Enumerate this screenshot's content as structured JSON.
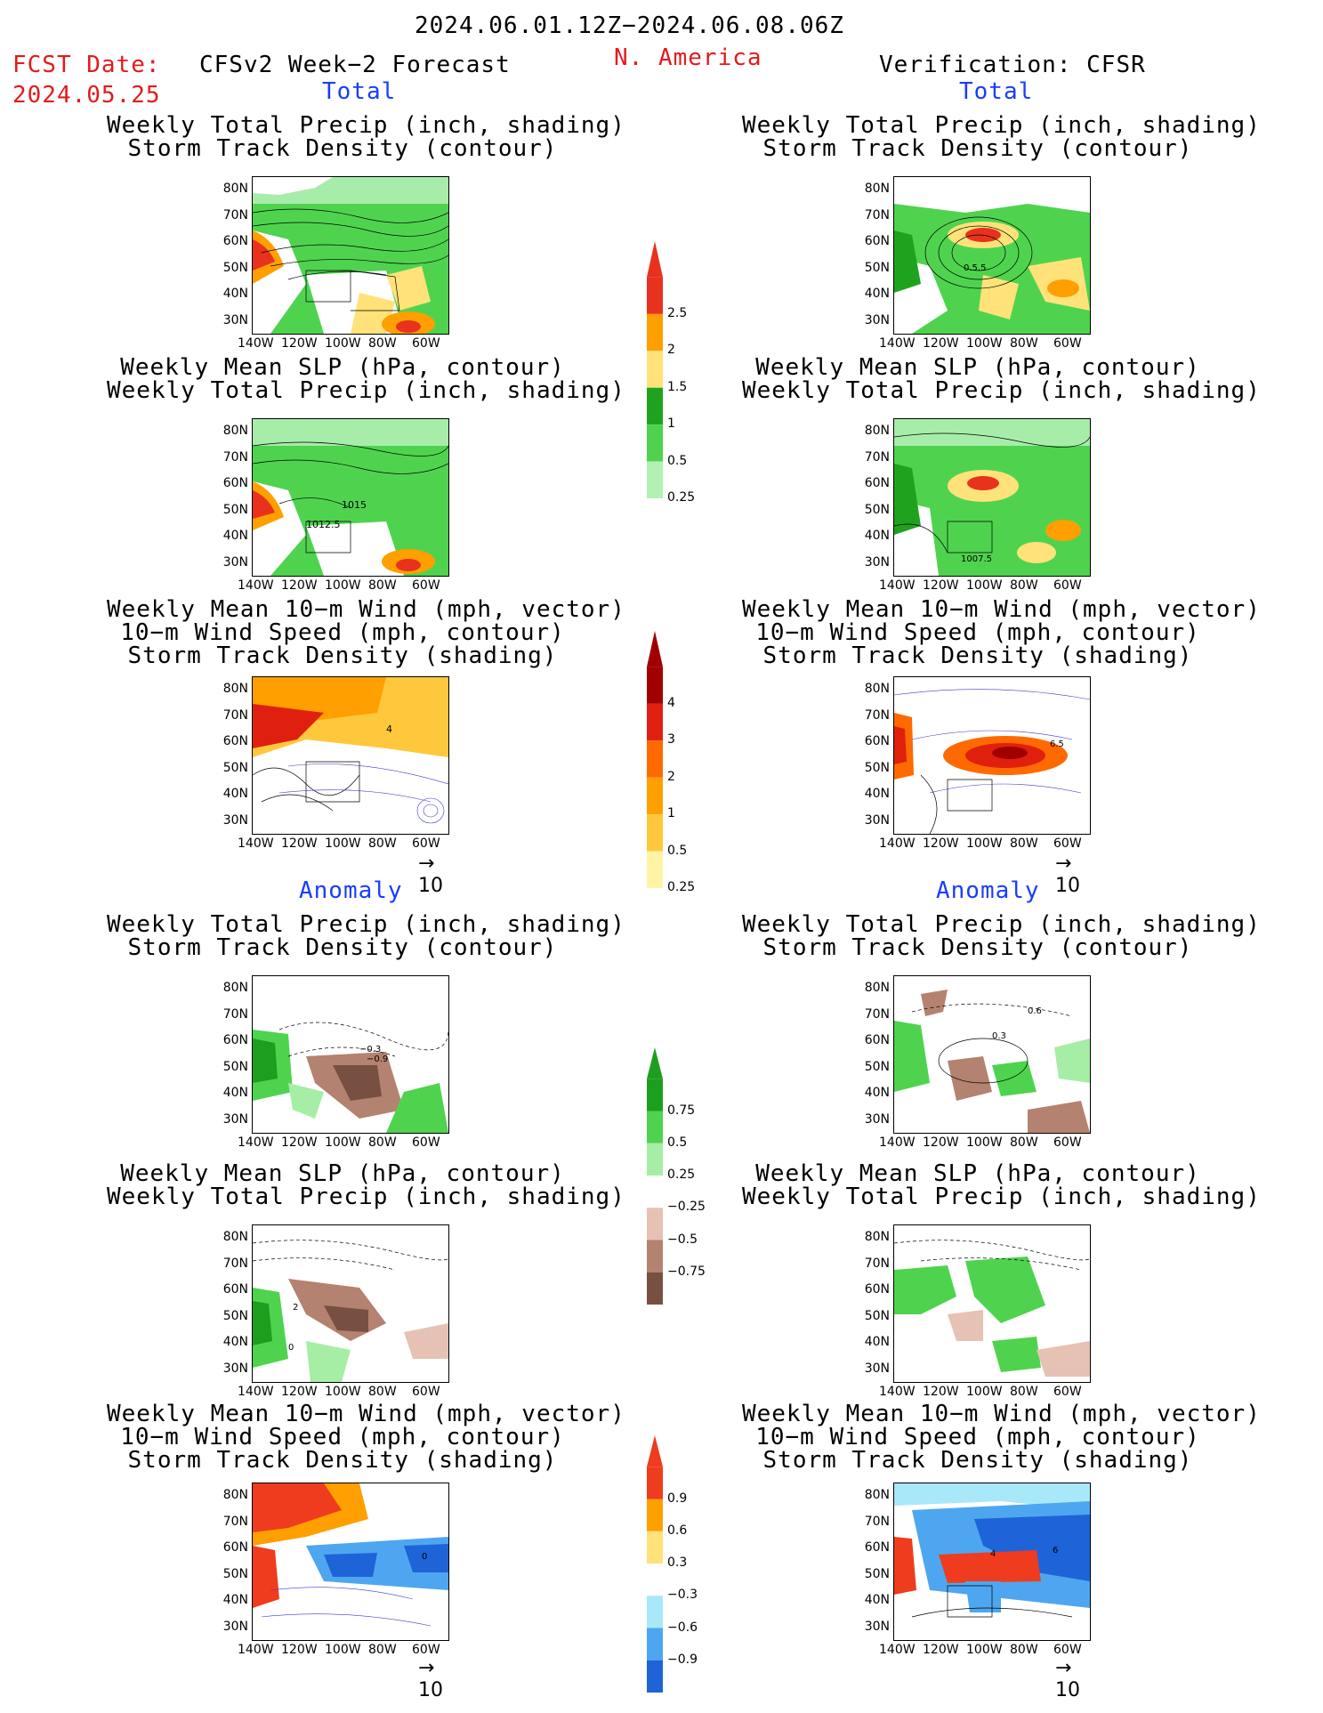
{
  "header": {
    "period": "2024.06.01.12Z−2024.06.08.06Z",
    "fcst_label": "FCST Date:",
    "fcst_date": "2024.05.25",
    "model": "CFSv2 Week−2 Forecast",
    "region": "N. America",
    "verification": "Verification: CFSR"
  },
  "sections": {
    "total": "Total",
    "anomaly": "Anomaly"
  },
  "titles": {
    "precip_storm_1": "Weekly Total Precip (inch, shading)",
    "precip_storm_2": "Storm Track Density (contour)",
    "slp_1": "Weekly Mean SLP (hPa, contour)",
    "slp_2": "Weekly Total Precip (inch, shading)",
    "wind_1": "Weekly Mean 10−m Wind (mph, vector)",
    "wind_2": "10−m Wind Speed (mph, contour)",
    "wind_3": "Storm Track Density (shading)"
  },
  "axes": {
    "lat_ticks": [
      "80N",
      "70N",
      "60N",
      "50N",
      "40N",
      "30N"
    ],
    "lon_ticks": [
      "140W",
      "120W",
      "100W",
      "80W",
      "60W"
    ]
  },
  "contour_labels": {
    "fc_slp_a": "1015",
    "fc_slp_b": "1012.5",
    "ver_slp_a": "1007.5",
    "ver_storm": "0.5.5",
    "fc_wind": "4",
    "ver_wind": "6.5",
    "fc_anom_storm_a": "−0.3",
    "fc_anom_storm_b": "−0.9",
    "ver_anom_storm_a": "0.6",
    "ver_anom_storm_b": "0.3",
    "fc_anom_slp_a": "2",
    "fc_anom_slp_b": "0",
    "fc_anom_wind": "0",
    "ver_anom_wind_a": "4",
    "ver_anom_wind_b": "6"
  },
  "vector_ref": "10",
  "colorbars": {
    "precip_total": {
      "labels": [
        "2.5",
        "2",
        "1.5",
        "1",
        "0.5",
        "0.25"
      ],
      "colors": [
        "#e8321e",
        "#ff9f00",
        "#ffe27a",
        "#1fa31f",
        "#4fd34f",
        "#b4f0b4"
      ]
    },
    "storm_total": {
      "labels": [
        "4",
        "3",
        "2",
        "1",
        "0.5",
        "0.25"
      ],
      "colors": [
        "#a00000",
        "#e0200e",
        "#ff6a00",
        "#ffa000",
        "#ffc83c",
        "#fff3a6"
      ]
    },
    "precip_anom": {
      "labels": [
        "0.75",
        "0.5",
        "0.25",
        "−0.25",
        "−0.5",
        "−0.75"
      ],
      "colors": [
        "#1e9e1e",
        "#4fd34f",
        "#a6eda6",
        "#ffffff",
        "#e6c2b4",
        "#b48270",
        "#785042"
      ]
    },
    "storm_anom": {
      "labels": [
        "0.9",
        "0.6",
        "0.3",
        "−0.3",
        "−0.6",
        "−0.9"
      ],
      "colors": [
        "#ef3c1e",
        "#ff9f00",
        "#ffe27a",
        "#ffffff",
        "#a8e8f8",
        "#4ea6f0",
        "#1e64d8"
      ]
    }
  }
}
